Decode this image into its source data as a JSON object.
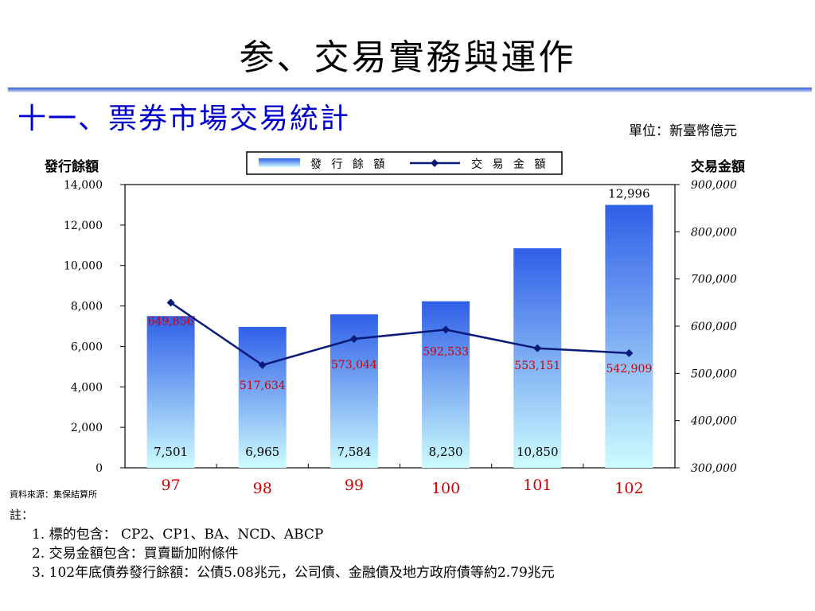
{
  "slide": {
    "title": "参、交易實務與運作",
    "subtitle": "十一、票券市場交易統計",
    "unit": "單位：新臺幣億元"
  },
  "chart_data": {
    "type": "bar",
    "categories": [
      "97",
      "98",
      "99",
      "100",
      "101",
      "102"
    ],
    "series": [
      {
        "name": "發行餘額",
        "type": "bar",
        "axis": "left",
        "values": [
          7501,
          6965,
          7584,
          8230,
          10850,
          12996
        ],
        "labels": [
          "7,501",
          "6,965",
          "7,584",
          "8,230",
          "10,850",
          "12,996"
        ]
      },
      {
        "name": "交易金額",
        "type": "line",
        "axis": "right",
        "values": [
          649856,
          517634,
          573044,
          592533,
          553151,
          542909
        ],
        "labels": [
          "649,856",
          "517,634",
          "573,044",
          "592,533",
          "553,151",
          "542,909"
        ]
      }
    ],
    "ylabel_left": "發行餘額",
    "ylabel_right": "交易金額",
    "ylim_left": [
      0,
      14000
    ],
    "ylim_right": [
      300000,
      900000
    ],
    "yticks_left": [
      "0",
      "2,000",
      "4,000",
      "6,000",
      "8,000",
      "10,000",
      "12,000",
      "14,000"
    ],
    "yticks_right": [
      "300,000",
      "400,000",
      "500,000",
      "600,000",
      "700,000",
      "800,000",
      "900,000"
    ],
    "legend_position": "top-center",
    "grid": false,
    "colors": {
      "bar_top": "#2f5fe8",
      "bar_bottom": "#cdfcff",
      "line": "#0a1a78",
      "line_label": "#d00000",
      "category_label": "#d00000"
    }
  },
  "source": "資料來源：集保結算所",
  "notes": {
    "title": "註：",
    "items": [
      "1. 標的包含： CP2、CP1、BA、NCD、ABCP",
      "2. 交易金額包含：買賣斷加附條件",
      "3. 102年底債券發行餘額：公債5.08兆元，公司債、金融債及地方政府債等約2.79兆元"
    ]
  }
}
